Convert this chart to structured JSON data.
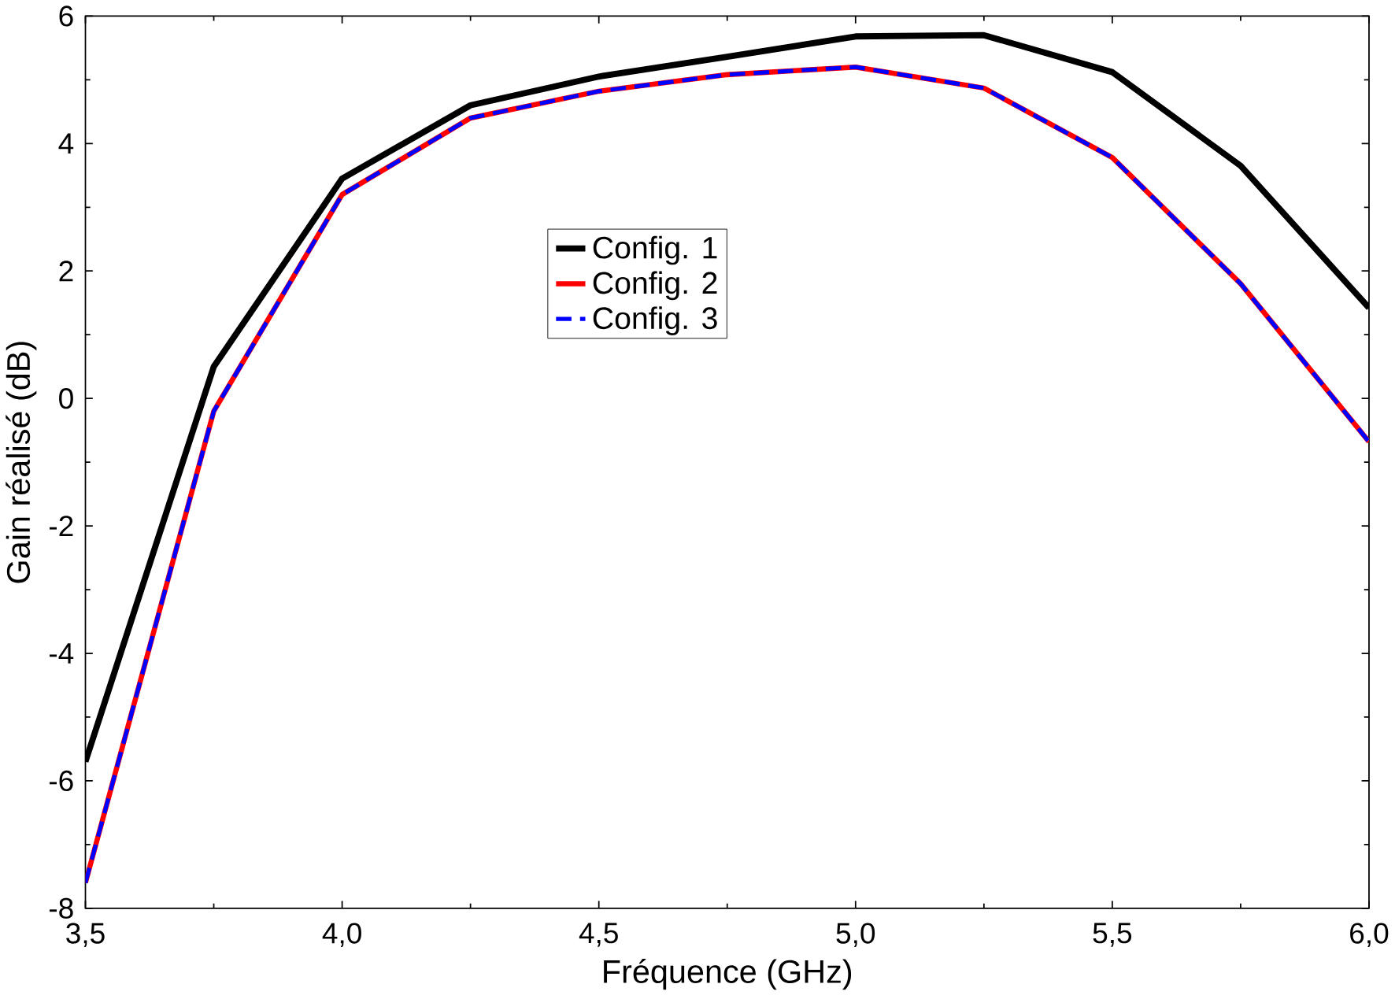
{
  "chart_data": {
    "type": "line",
    "xlabel": "Fréquence (GHz)",
    "ylabel": "Gain réalisé (dB)",
    "x": [
      3.5,
      3.75,
      4.0,
      4.25,
      4.5,
      4.75,
      5.0,
      5.25,
      5.5,
      5.75,
      6.0
    ],
    "series": [
      {
        "name": "Config. 1",
        "color": "#000000",
        "line_style": "solid",
        "values": [
          -5.7,
          0.5,
          3.45,
          4.6,
          5.05,
          5.36,
          5.68,
          5.7,
          5.12,
          3.65,
          1.42
        ]
      },
      {
        "name": "Config. 2",
        "color": "#ff0000",
        "line_style": "solid",
        "values": [
          -7.6,
          -0.2,
          3.2,
          4.4,
          4.82,
          5.08,
          5.2,
          4.87,
          3.78,
          1.8,
          -0.68
        ]
      },
      {
        "name": "Config. 3",
        "color": "#0000ff",
        "line_style": "dashed",
        "values": [
          -7.6,
          -0.2,
          3.2,
          4.4,
          4.82,
          5.08,
          5.2,
          4.87,
          3.78,
          1.8,
          -0.68
        ]
      }
    ],
    "xlim": [
      3.5,
      6.0
    ],
    "ylim": [
      -8,
      6
    ],
    "xticks": [
      {
        "value": 3.5,
        "label": "3,5"
      },
      {
        "value": 4.0,
        "label": "4,0"
      },
      {
        "value": 4.5,
        "label": "4,5"
      },
      {
        "value": 5.0,
        "label": "5,0"
      },
      {
        "value": 5.5,
        "label": "5,5"
      },
      {
        "value": 6.0,
        "label": "6,0"
      }
    ],
    "yticks": [
      -8,
      -6,
      -4,
      -2,
      0,
      2,
      4,
      6
    ],
    "grid": false,
    "legend": "center",
    "marker": "none"
  }
}
